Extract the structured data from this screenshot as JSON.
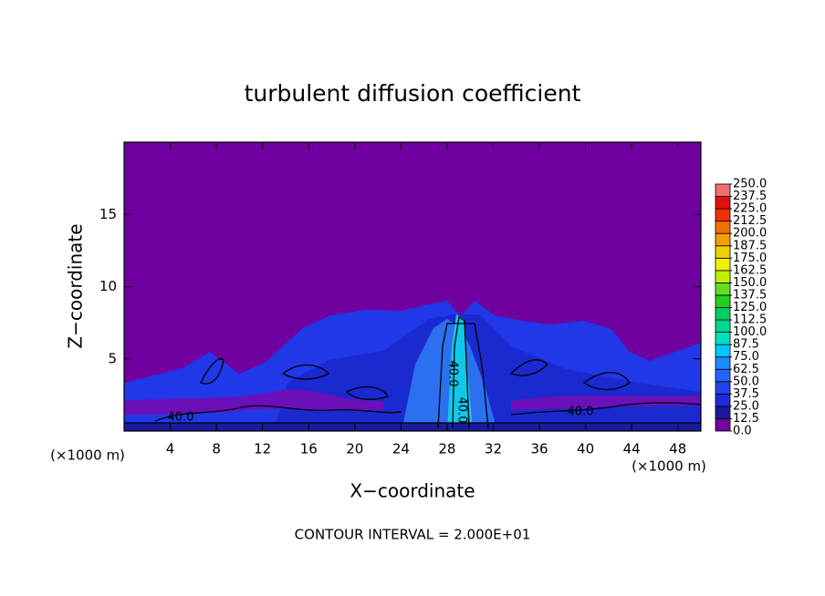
{
  "chart_data": {
    "type": "contour",
    "title": "turbulent diffusion coefficient",
    "x_label": "X−coordinate",
    "y_label": "Z−coordinate",
    "x_unit": "(×1000 m)",
    "x_unit_right": "(×1000 m)",
    "footnote": "CONTOUR INTERVAL = 2.000E+01",
    "xlim": [
      0,
      50
    ],
    "xticks": [
      4,
      8,
      12,
      16,
      20,
      24,
      28,
      32,
      36,
      40,
      44,
      48
    ],
    "ylim": [
      0,
      20
    ],
    "yticks": [
      5,
      10,
      15
    ],
    "contour_labels": [
      "40.0",
      "40.0",
      "40.0",
      "40.0"
    ],
    "colorbar": {
      "ticks": [
        {
          "value": 0,
          "label": "0.0"
        },
        12.5,
        {
          "value": 25,
          "label": "25.0"
        },
        37.5,
        {
          "value": 50,
          "label": "50.0"
        },
        62.5,
        {
          "value": 75,
          "label": "75.0"
        },
        87.5,
        {
          "value": 100,
          "label": "100.0"
        },
        112.5,
        {
          "value": 125,
          "label": "125.0"
        },
        137.5,
        {
          "value": 150,
          "label": "150.0"
        },
        162.5,
        {
          "value": 175,
          "label": "175.0"
        },
        187.5,
        {
          "value": 200,
          "label": "200.0"
        },
        212.5,
        {
          "value": 225,
          "label": "225.0"
        },
        237.5,
        {
          "value": 250,
          "label": "250.0"
        }
      ],
      "colors": [
        "#7000a0",
        "#1a1a9a",
        "#1e2ad8",
        "#2044f0",
        "#2266ff",
        "#1a8cff",
        "#00c8ff",
        "#00e0c0",
        "#00d890",
        "#00d060",
        "#20d020",
        "#60e020",
        "#c0f000",
        "#f0f000",
        "#f0d000",
        "#f0a000",
        "#f07000",
        "#f03000",
        "#e01010",
        "#f07070"
      ]
    }
  }
}
